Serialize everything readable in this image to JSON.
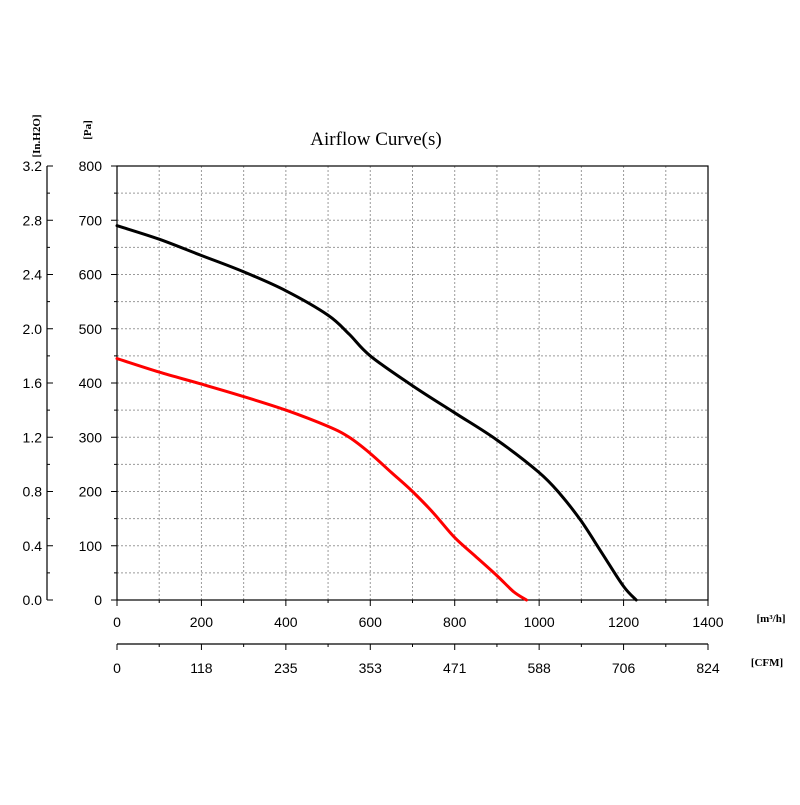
{
  "chart_data": {
    "type": "line",
    "title": "Airflow Curve(s)",
    "y_primary_unit": "[Pa]",
    "y_secondary_unit": "[In.H2O]",
    "x_primary_unit": "[m³/h]",
    "x_secondary_unit": "[CFM]",
    "xlim": [
      0,
      1400
    ],
    "ylim": [
      0,
      800
    ],
    "grid": true,
    "x_ticks": [
      "0",
      "200",
      "400",
      "600",
      "800",
      "1000",
      "1200",
      "1400"
    ],
    "x_tick_values": [
      0,
      200,
      400,
      600,
      800,
      1000,
      1200,
      1400
    ],
    "x_secondary_ticks": [
      "0",
      "118",
      "235",
      "353",
      "471",
      "588",
      "706",
      "824"
    ],
    "y_ticks": [
      "0",
      "100",
      "200",
      "300",
      "400",
      "500",
      "600",
      "700",
      "800"
    ],
    "y_tick_values": [
      0,
      100,
      200,
      300,
      400,
      500,
      600,
      700,
      800
    ],
    "y_secondary_ticks": [
      "0.0",
      "0.4",
      "0.8",
      "1.2",
      "1.6",
      "2.0",
      "2.4",
      "2.8",
      "3.2"
    ],
    "series": [
      {
        "color": "#000000",
        "x": [
          0,
          100,
          200,
          300,
          400,
          500,
          550,
          600,
          700,
          800,
          900,
          1000,
          1050,
          1100,
          1150,
          1200,
          1230
        ],
        "y": [
          690,
          665,
          635,
          605,
          570,
          525,
          490,
          450,
          395,
          345,
          295,
          235,
          195,
          145,
          85,
          25,
          0
        ]
      },
      {
        "color": "#ff0000",
        "x": [
          0,
          100,
          200,
          300,
          400,
          500,
          550,
          600,
          650,
          700,
          750,
          800,
          850,
          900,
          940,
          970
        ],
        "y": [
          445,
          420,
          398,
          375,
          350,
          320,
          300,
          270,
          235,
          200,
          160,
          115,
          80,
          45,
          15,
          0
        ]
      }
    ]
  }
}
